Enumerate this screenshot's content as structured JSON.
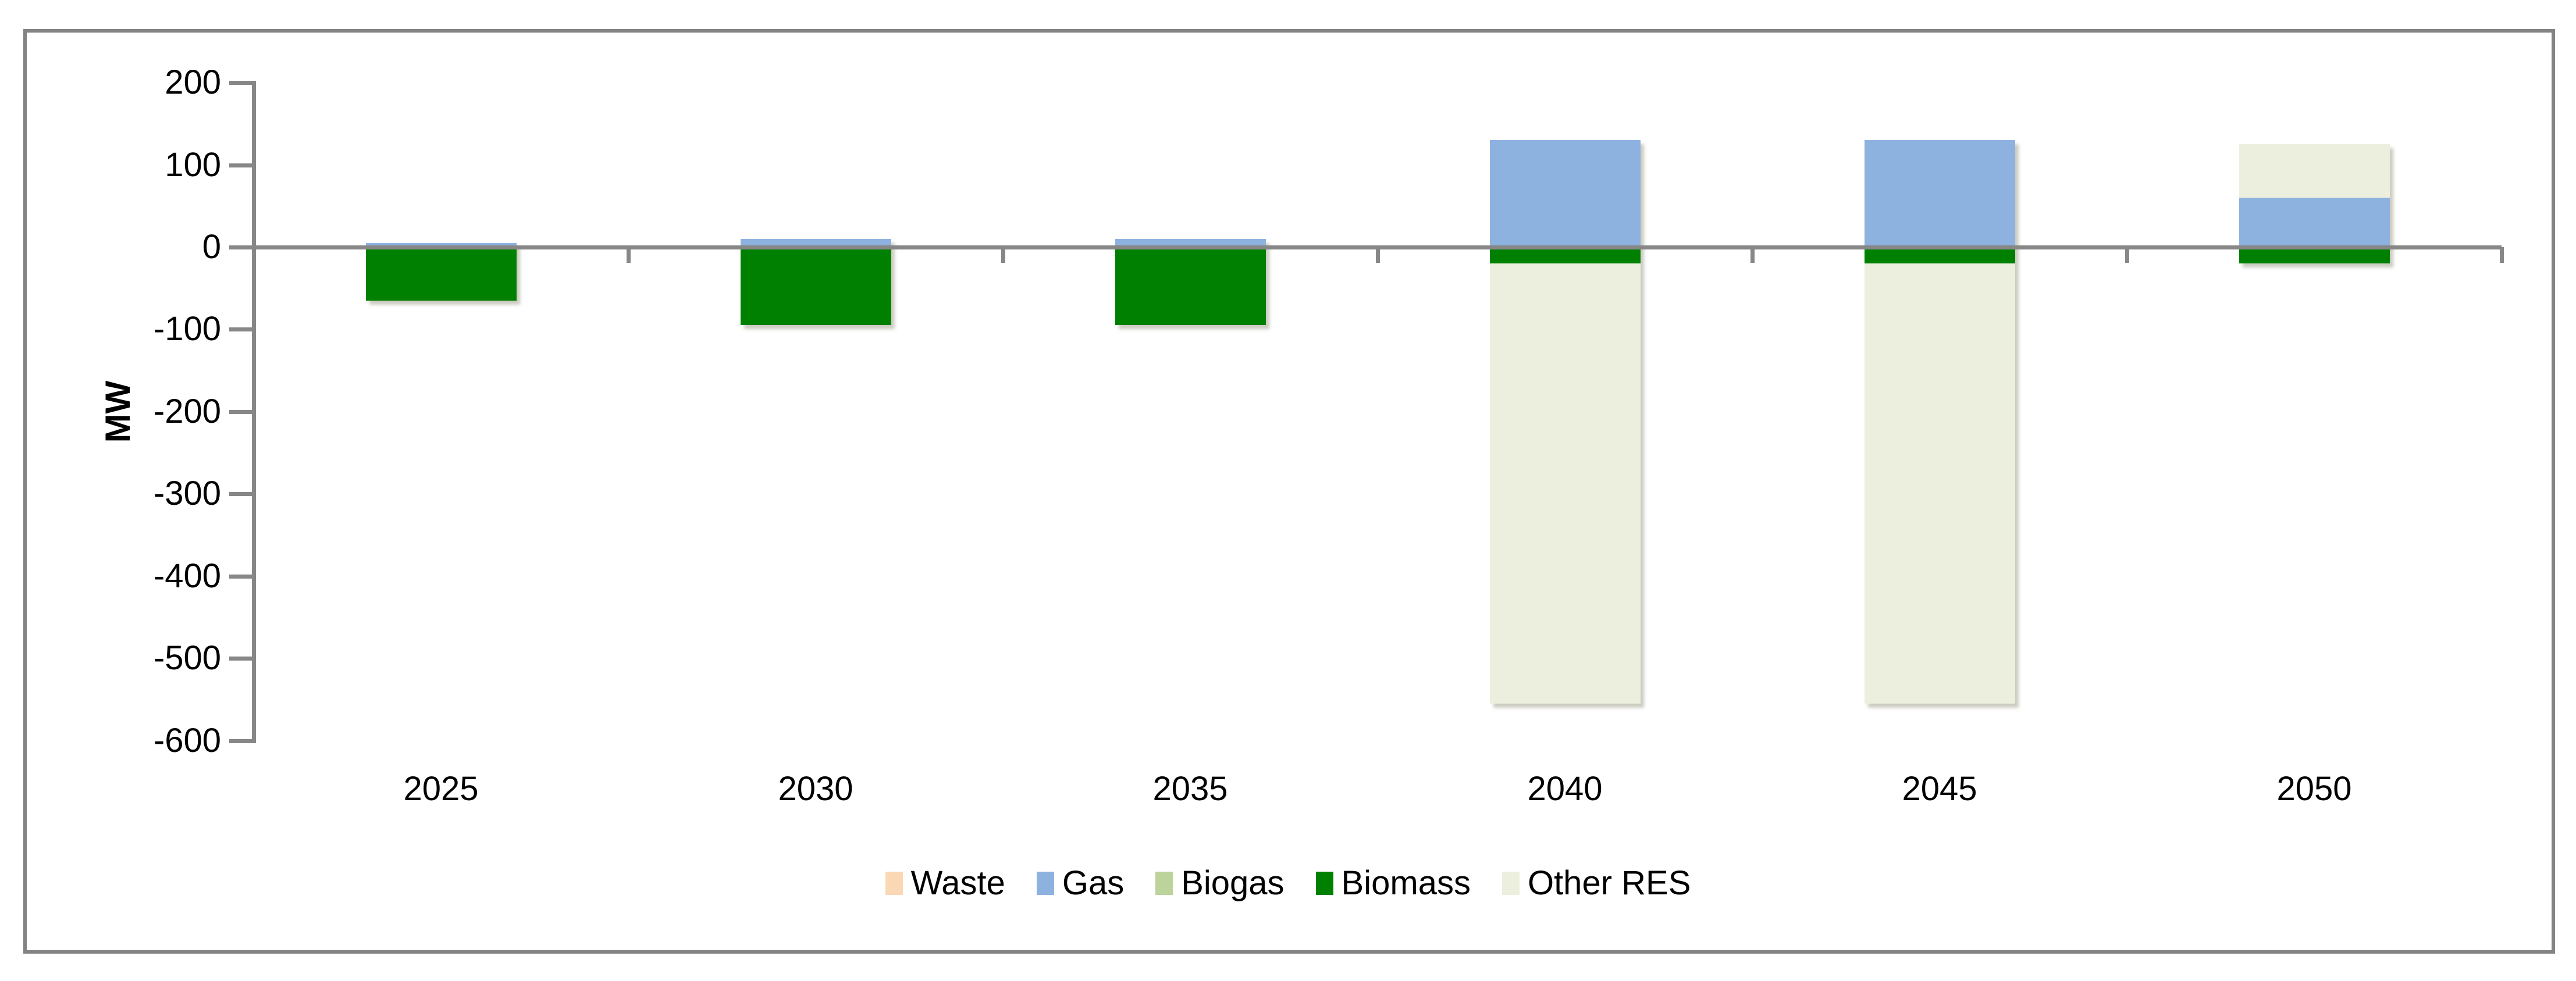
{
  "chart_data": {
    "type": "bar",
    "stacked": true,
    "title": "",
    "xlabel": "",
    "ylabel": "MW",
    "categories": [
      "2025",
      "2030",
      "2035",
      "2040",
      "2045",
      "2050"
    ],
    "series": [
      {
        "name": "Waste",
        "color": "#FAD7B5",
        "values": [
          0,
          0,
          0,
          0,
          0,
          0
        ]
      },
      {
        "name": "Gas",
        "color": "#8EB2DF",
        "values": [
          5,
          10,
          10,
          130,
          130,
          60
        ]
      },
      {
        "name": "Biogas",
        "color": "#BCD39B",
        "values": [
          0,
          0,
          0,
          0,
          0,
          0
        ]
      },
      {
        "name": "Biomass",
        "color": "#008000",
        "values": [
          -65,
          -95,
          -95,
          -20,
          -20,
          -20
        ]
      },
      {
        "name": "Other RES",
        "color": "#ECEFDE",
        "values": [
          0,
          0,
          0,
          -535,
          -535,
          65
        ]
      }
    ],
    "y_ticks": [
      200,
      100,
      0,
      -100,
      -200,
      -300,
      -400,
      -500,
      -600
    ],
    "ylim": [
      -600,
      200
    ],
    "grid": false,
    "legend_position": "bottom"
  },
  "axis": {
    "line_color": "#878787",
    "text_color": "#000000"
  },
  "frame": {
    "border_color": "#838383"
  }
}
